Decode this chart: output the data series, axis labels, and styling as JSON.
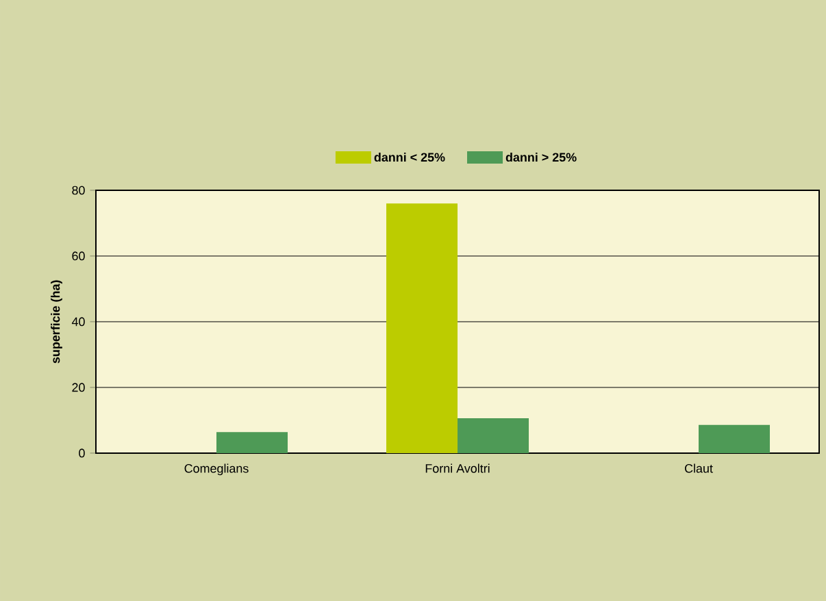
{
  "chart_data": {
    "type": "bar",
    "ylabel": "superficie (ha)",
    "categories": [
      "Comeglians",
      "Forni Avoltri",
      "Claut"
    ],
    "series": [
      {
        "name": "danni < 25%",
        "color": "#bccc00",
        "values": [
          0,
          76,
          0
        ]
      },
      {
        "name": "danni > 25%",
        "color": "#4e9a56",
        "values": [
          6.4,
          10.6,
          8.6
        ]
      }
    ],
    "ylim": [
      0,
      80
    ],
    "yticks": [
      0,
      20,
      40,
      60,
      80
    ],
    "grid": "y",
    "legend": "top"
  }
}
